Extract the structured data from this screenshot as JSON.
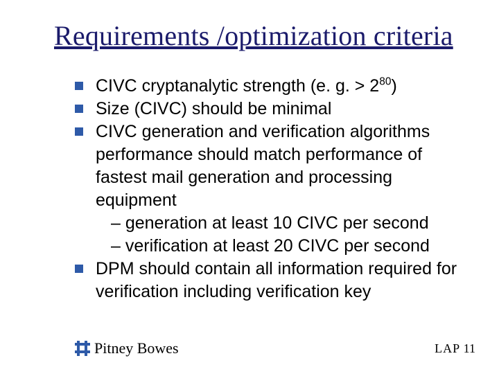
{
  "colors": {
    "title_color": "#1b1b6b",
    "bullet_color": "#2e5aa8",
    "body_text_color": "#000000",
    "background": "#ffffff"
  },
  "typography": {
    "title_font": "Times New Roman",
    "title_size_pt": 30,
    "body_font": "Arial",
    "body_size_pt": 19,
    "footer_brand_font": "Times New Roman"
  },
  "title": "Requirements /optimization criteria",
  "bullets": {
    "b1_pre": "CIVC cryptanalytic strength (e. g. > 2",
    "b1_sup": "80",
    "b1_post": ")",
    "b2": "Size (CIVC) should be minimal",
    "b3": "CIVC generation and verification algorithms performance should match performance of fastest mail generation and processing equipment",
    "b3_sub1": "– generation at least 10 CIVC per second",
    "b3_sub2": "– verification at least 20 CIVC per second",
    "b4": "DPM should contain all information required for verification including verification key"
  },
  "footer": {
    "brand": "Pitney Bowes",
    "page_label": "LAP",
    "page_number": "11"
  }
}
